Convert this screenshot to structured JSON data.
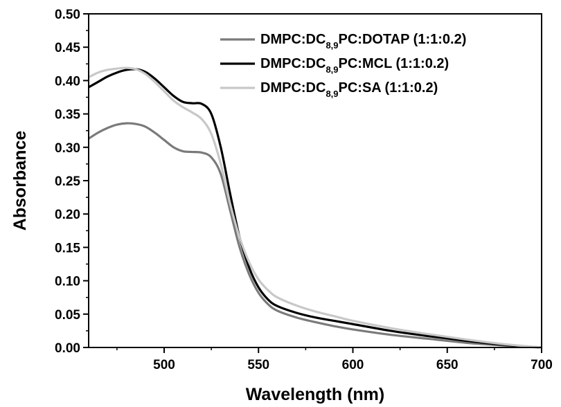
{
  "chart_data": {
    "type": "line",
    "title": "",
    "xlabel": "Wavelength (nm)",
    "ylabel": "Absorbance",
    "xlim": [
      460,
      700
    ],
    "ylim": [
      0.0,
      0.5
    ],
    "x_ticks": [
      500,
      550,
      600,
      650,
      700
    ],
    "x_tick_labels": [
      "500",
      "550",
      "600",
      "650",
      "700"
    ],
    "y_ticks": [
      0.0,
      0.05,
      0.1,
      0.15,
      0.2,
      0.25,
      0.3,
      0.35,
      0.4,
      0.45,
      0.5
    ],
    "y_tick_labels": [
      "0.00",
      "0.05",
      "0.10",
      "0.15",
      "0.20",
      "0.25",
      "0.30",
      "0.35",
      "0.40",
      "0.45",
      "0.50"
    ],
    "grid": false,
    "legend_position": "top-right",
    "series": [
      {
        "name": "DMPC:DC8,9PC:DOTAP (1:1:0.2)",
        "legend": {
          "pre": "DMPC:DC",
          "sub": "8,9",
          "post": "PC:DOTAP (1:1:0.2)"
        },
        "color": "#7a7a7a",
        "x": [
          460,
          465,
          470,
          475,
          480,
          485,
          490,
          495,
          500,
          505,
          510,
          515,
          520,
          525,
          530,
          535,
          540,
          545,
          550,
          555,
          560,
          570,
          580,
          590,
          600,
          620,
          640,
          660,
          680,
          700
        ],
        "y": [
          0.313,
          0.322,
          0.329,
          0.334,
          0.336,
          0.335,
          0.331,
          0.322,
          0.311,
          0.3,
          0.294,
          0.293,
          0.292,
          0.285,
          0.26,
          0.205,
          0.15,
          0.11,
          0.082,
          0.065,
          0.055,
          0.045,
          0.038,
          0.032,
          0.027,
          0.019,
          0.013,
          0.007,
          0.003,
          0.0
        ]
      },
      {
        "name": "DMPC:DC8,9PC:MCL (1:1:0.2)",
        "legend": {
          "pre": "DMPC:DC",
          "sub": "8,9",
          "post": "PC:MCL (1:1:0.2)"
        },
        "color": "#000000",
        "x": [
          460,
          465,
          470,
          475,
          480,
          485,
          490,
          495,
          500,
          505,
          510,
          515,
          520,
          525,
          530,
          535,
          540,
          545,
          550,
          555,
          560,
          570,
          580,
          590,
          600,
          620,
          640,
          660,
          680,
          700
        ],
        "y": [
          0.39,
          0.398,
          0.406,
          0.412,
          0.416,
          0.417,
          0.413,
          0.403,
          0.39,
          0.377,
          0.368,
          0.366,
          0.365,
          0.35,
          0.3,
          0.23,
          0.165,
          0.12,
          0.09,
          0.072,
          0.062,
          0.052,
          0.045,
          0.04,
          0.035,
          0.025,
          0.017,
          0.01,
          0.004,
          0.0
        ]
      },
      {
        "name": "DMPC:DC8,9PC:SA (1:1:0.2)",
        "legend": {
          "pre": "DMPC:DC",
          "sub": "8,9",
          "post": "PC:SA (1:1:0.2)"
        },
        "color": "#c8c8c8",
        "x": [
          460,
          465,
          470,
          475,
          480,
          485,
          490,
          495,
          500,
          505,
          510,
          515,
          520,
          525,
          530,
          535,
          540,
          545,
          550,
          555,
          560,
          570,
          580,
          590,
          600,
          620,
          640,
          660,
          680,
          700
        ],
        "y": [
          0.405,
          0.412,
          0.416,
          0.418,
          0.419,
          0.417,
          0.41,
          0.398,
          0.384,
          0.37,
          0.36,
          0.352,
          0.342,
          0.32,
          0.275,
          0.215,
          0.165,
          0.128,
          0.102,
          0.086,
          0.075,
          0.063,
          0.054,
          0.047,
          0.04,
          0.029,
          0.02,
          0.012,
          0.005,
          0.0
        ]
      }
    ]
  }
}
